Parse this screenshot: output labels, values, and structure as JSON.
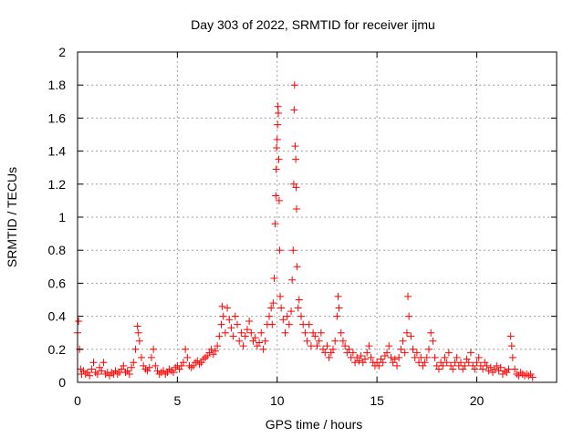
{
  "chart_data": {
    "type": "scatter",
    "title": "Day 303 of 2022, SRMTID for receiver ijmu",
    "xlabel": "GPS time / hours",
    "ylabel": "SRMTID / TECUs",
    "xlim": [
      0,
      24
    ],
    "ylim": [
      0,
      2
    ],
    "xticks": [
      0,
      5,
      10,
      15,
      20
    ],
    "xtick_labels": [
      "0",
      "5",
      "10",
      "15",
      "20"
    ],
    "yticks": [
      0,
      0.2,
      0.4,
      0.6,
      0.8,
      1,
      1.2,
      1.4,
      1.6,
      1.8,
      2
    ],
    "ytick_labels": [
      "0",
      "0.2",
      "0.4",
      "0.6",
      "0.8",
      "1",
      "1.2",
      "1.4",
      "1.6",
      "1.8",
      "2"
    ],
    "grid": true,
    "marker": "+",
    "series": [
      {
        "name": "SRMTID",
        "color": "#ff0000",
        "points": [
          [
            0.0,
            0.3
          ],
          [
            0.05,
            0.37
          ],
          [
            0.1,
            0.2
          ],
          [
            0.15,
            0.08
          ],
          [
            0.2,
            0.05
          ],
          [
            0.3,
            0.07
          ],
          [
            0.4,
            0.05
          ],
          [
            0.5,
            0.06
          ],
          [
            0.6,
            0.04
          ],
          [
            0.7,
            0.08
          ],
          [
            0.8,
            0.12
          ],
          [
            0.9,
            0.06
          ],
          [
            1.0,
            0.05
          ],
          [
            1.1,
            0.09
          ],
          [
            1.2,
            0.07
          ],
          [
            1.3,
            0.12
          ],
          [
            1.4,
            0.05
          ],
          [
            1.5,
            0.06
          ],
          [
            1.6,
            0.04
          ],
          [
            1.7,
            0.06
          ],
          [
            1.8,
            0.05
          ],
          [
            1.9,
            0.07
          ],
          [
            2.0,
            0.05
          ],
          [
            2.1,
            0.06
          ],
          [
            2.2,
            0.08
          ],
          [
            2.3,
            0.1
          ],
          [
            2.4,
            0.06
          ],
          [
            2.5,
            0.07
          ],
          [
            2.6,
            0.05
          ],
          [
            2.7,
            0.09
          ],
          [
            2.8,
            0.12
          ],
          [
            2.9,
            0.2
          ],
          [
            3.0,
            0.34
          ],
          [
            3.05,
            0.3
          ],
          [
            3.1,
            0.25
          ],
          [
            3.2,
            0.15
          ],
          [
            3.3,
            0.1
          ],
          [
            3.4,
            0.08
          ],
          [
            3.5,
            0.07
          ],
          [
            3.6,
            0.09
          ],
          [
            3.7,
            0.15
          ],
          [
            3.8,
            0.2
          ],
          [
            3.9,
            0.1
          ],
          [
            4.0,
            0.07
          ],
          [
            4.1,
            0.05
          ],
          [
            4.2,
            0.06
          ],
          [
            4.3,
            0.07
          ],
          [
            4.4,
            0.05
          ],
          [
            4.5,
            0.06
          ],
          [
            4.6,
            0.08
          ],
          [
            4.7,
            0.07
          ],
          [
            4.8,
            0.06
          ],
          [
            4.9,
            0.09
          ],
          [
            5.0,
            0.1
          ],
          [
            5.1,
            0.08
          ],
          [
            5.2,
            0.1
          ],
          [
            5.3,
            0.12
          ],
          [
            5.4,
            0.2
          ],
          [
            5.5,
            0.15
          ],
          [
            5.6,
            0.1
          ],
          [
            5.7,
            0.09
          ],
          [
            5.8,
            0.1
          ],
          [
            5.9,
            0.12
          ],
          [
            6.0,
            0.13
          ],
          [
            6.1,
            0.11
          ],
          [
            6.2,
            0.12
          ],
          [
            6.3,
            0.14
          ],
          [
            6.4,
            0.15
          ],
          [
            6.5,
            0.16
          ],
          [
            6.6,
            0.18
          ],
          [
            6.7,
            0.2
          ],
          [
            6.8,
            0.17
          ],
          [
            6.9,
            0.19
          ],
          [
            7.0,
            0.22
          ],
          [
            7.1,
            0.28
          ],
          [
            7.2,
            0.35
          ],
          [
            7.25,
            0.46
          ],
          [
            7.3,
            0.4
          ],
          [
            7.4,
            0.3
          ],
          [
            7.5,
            0.45
          ],
          [
            7.6,
            0.38
          ],
          [
            7.7,
            0.33
          ],
          [
            7.8,
            0.28
          ],
          [
            7.9,
            0.4
          ],
          [
            8.0,
            0.35
          ],
          [
            8.1,
            0.25
          ],
          [
            8.2,
            0.3
          ],
          [
            8.3,
            0.22
          ],
          [
            8.4,
            0.28
          ],
          [
            8.5,
            0.32
          ],
          [
            8.6,
            0.37
          ],
          [
            8.7,
            0.3
          ],
          [
            8.8,
            0.25
          ],
          [
            8.9,
            0.27
          ],
          [
            9.0,
            0.22
          ],
          [
            9.1,
            0.24
          ],
          [
            9.2,
            0.3
          ],
          [
            9.3,
            0.2
          ],
          [
            9.4,
            0.25
          ],
          [
            9.5,
            0.35
          ],
          [
            9.6,
            0.4
          ],
          [
            9.7,
            0.45
          ],
          [
            9.75,
            0.35
          ],
          [
            9.8,
            0.48
          ],
          [
            9.85,
            0.63
          ],
          [
            9.9,
            0.96
          ],
          [
            9.93,
            1.13
          ],
          [
            9.95,
            1.29
          ],
          [
            9.97,
            1.42
          ],
          [
            10.0,
            1.47
          ],
          [
            10.02,
            1.56
          ],
          [
            10.04,
            1.67
          ],
          [
            10.06,
            1.63
          ],
          [
            10.08,
            1.35
          ],
          [
            10.1,
            1.1
          ],
          [
            10.12,
            0.8
          ],
          [
            10.15,
            0.52
          ],
          [
            10.2,
            0.45
          ],
          [
            10.3,
            0.38
          ],
          [
            10.4,
            0.3
          ],
          [
            10.5,
            0.4
          ],
          [
            10.6,
            0.35
          ],
          [
            10.7,
            0.43
          ],
          [
            10.75,
            0.62
          ],
          [
            10.8,
            0.8
          ],
          [
            10.83,
            1.2
          ],
          [
            10.85,
            1.65
          ],
          [
            10.87,
            1.8
          ],
          [
            10.9,
            1.43
          ],
          [
            10.93,
            1.35
          ],
          [
            10.95,
            1.18
          ],
          [
            10.97,
            1.05
          ],
          [
            11.0,
            0.7
          ],
          [
            11.05,
            0.45
          ],
          [
            11.1,
            0.5
          ],
          [
            11.2,
            0.4
          ],
          [
            11.3,
            0.35
          ],
          [
            11.4,
            0.3
          ],
          [
            11.5,
            0.25
          ],
          [
            11.6,
            0.35
          ],
          [
            11.7,
            0.22
          ],
          [
            11.8,
            0.3
          ],
          [
            11.9,
            0.28
          ],
          [
            12.0,
            0.22
          ],
          [
            12.1,
            0.25
          ],
          [
            12.2,
            0.3
          ],
          [
            12.3,
            0.2
          ],
          [
            12.4,
            0.18
          ],
          [
            12.5,
            0.22
          ],
          [
            12.6,
            0.15
          ],
          [
            12.7,
            0.18
          ],
          [
            12.8,
            0.2
          ],
          [
            12.9,
            0.25
          ],
          [
            13.0,
            0.4
          ],
          [
            13.05,
            0.52
          ],
          [
            13.1,
            0.45
          ],
          [
            13.2,
            0.3
          ],
          [
            13.3,
            0.25
          ],
          [
            13.4,
            0.22
          ],
          [
            13.5,
            0.18
          ],
          [
            13.6,
            0.2
          ],
          [
            13.7,
            0.15
          ],
          [
            13.8,
            0.18
          ],
          [
            13.9,
            0.12
          ],
          [
            14.0,
            0.15
          ],
          [
            14.1,
            0.13
          ],
          [
            14.2,
            0.16
          ],
          [
            14.3,
            0.12
          ],
          [
            14.4,
            0.14
          ],
          [
            14.5,
            0.18
          ],
          [
            14.6,
            0.22
          ],
          [
            14.7,
            0.15
          ],
          [
            14.8,
            0.12
          ],
          [
            14.9,
            0.1
          ],
          [
            15.0,
            0.12
          ],
          [
            15.1,
            0.1
          ],
          [
            15.2,
            0.14
          ],
          [
            15.3,
            0.12
          ],
          [
            15.4,
            0.16
          ],
          [
            15.5,
            0.18
          ],
          [
            15.6,
            0.22
          ],
          [
            15.7,
            0.15
          ],
          [
            15.8,
            0.12
          ],
          [
            15.9,
            0.14
          ],
          [
            16.0,
            0.1
          ],
          [
            16.1,
            0.15
          ],
          [
            16.2,
            0.2
          ],
          [
            16.3,
            0.25
          ],
          [
            16.4,
            0.18
          ],
          [
            16.5,
            0.3
          ],
          [
            16.55,
            0.52
          ],
          [
            16.6,
            0.4
          ],
          [
            16.7,
            0.28
          ],
          [
            16.8,
            0.2
          ],
          [
            16.9,
            0.15
          ],
          [
            17.0,
            0.18
          ],
          [
            17.1,
            0.12
          ],
          [
            17.2,
            0.15
          ],
          [
            17.3,
            0.1
          ],
          [
            17.4,
            0.12
          ],
          [
            17.5,
            0.15
          ],
          [
            17.6,
            0.2
          ],
          [
            17.7,
            0.3
          ],
          [
            17.8,
            0.25
          ],
          [
            17.9,
            0.15
          ],
          [
            18.0,
            0.1
          ],
          [
            18.1,
            0.08
          ],
          [
            18.2,
            0.12
          ],
          [
            18.3,
            0.1
          ],
          [
            18.4,
            0.15
          ],
          [
            18.5,
            0.12
          ],
          [
            18.6,
            0.18
          ],
          [
            18.7,
            0.1
          ],
          [
            18.8,
            0.08
          ],
          [
            18.9,
            0.12
          ],
          [
            19.0,
            0.15
          ],
          [
            19.1,
            0.1
          ],
          [
            19.2,
            0.12
          ],
          [
            19.3,
            0.08
          ],
          [
            19.4,
            0.1
          ],
          [
            19.5,
            0.14
          ],
          [
            19.6,
            0.12
          ],
          [
            19.7,
            0.18
          ],
          [
            19.8,
            0.1
          ],
          [
            19.9,
            0.08
          ],
          [
            20.0,
            0.12
          ],
          [
            20.1,
            0.15
          ],
          [
            20.2,
            0.1
          ],
          [
            20.3,
            0.08
          ],
          [
            20.4,
            0.12
          ],
          [
            20.5,
            0.1
          ],
          [
            20.6,
            0.07
          ],
          [
            20.7,
            0.09
          ],
          [
            20.8,
            0.06
          ],
          [
            20.9,
            0.08
          ],
          [
            21.0,
            0.1
          ],
          [
            21.1,
            0.07
          ],
          [
            21.2,
            0.09
          ],
          [
            21.3,
            0.05
          ],
          [
            21.4,
            0.07
          ],
          [
            21.5,
            0.06
          ],
          [
            21.6,
            0.08
          ],
          [
            21.7,
            0.28
          ],
          [
            21.75,
            0.22
          ],
          [
            21.8,
            0.15
          ],
          [
            21.9,
            0.08
          ],
          [
            22.0,
            0.05
          ],
          [
            22.1,
            0.04
          ],
          [
            22.2,
            0.06
          ],
          [
            22.3,
            0.05
          ],
          [
            22.4,
            0.04
          ],
          [
            22.5,
            0.05
          ],
          [
            22.6,
            0.04
          ],
          [
            22.7,
            0.05
          ],
          [
            22.8,
            0.03
          ]
        ]
      }
    ]
  }
}
